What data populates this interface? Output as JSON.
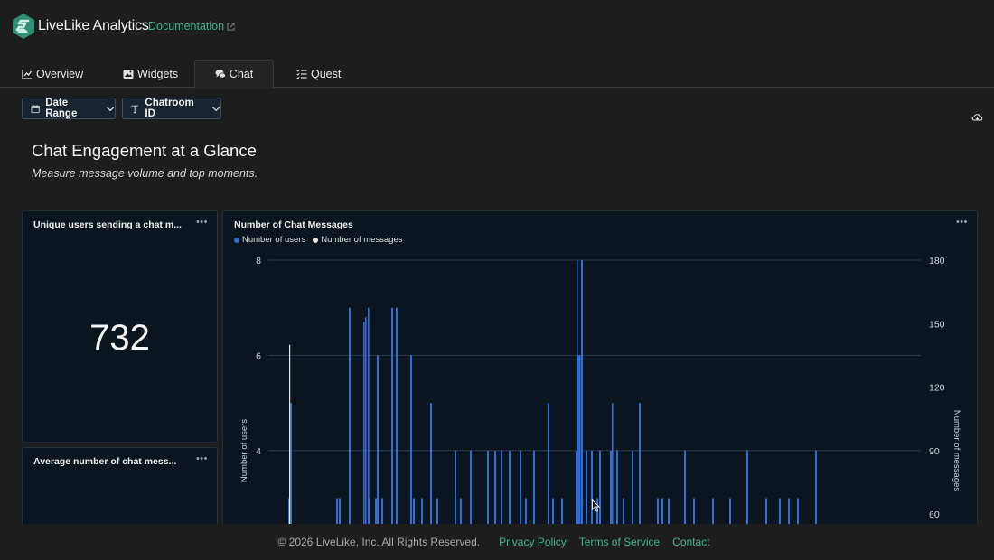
{
  "header": {
    "brand": "LiveLike Analytics",
    "doc_link": "Documentation",
    "brand_color": "#3fb58e"
  },
  "tabs": [
    {
      "label": "Overview",
      "icon": "line-chart-icon"
    },
    {
      "label": "Widgets",
      "icon": "image-icon"
    },
    {
      "label": "Chat",
      "icon": "chat-bubbles-icon",
      "active": true
    },
    {
      "label": "Quest",
      "icon": "checklist-icon"
    }
  ],
  "filters": {
    "date_range": "Date Range",
    "chatroom_id": "Chatroom ID"
  },
  "page": {
    "title": "Chat Engagement at a Glance",
    "subtitle": "Measure message volume and top moments."
  },
  "cards": {
    "unique_users": {
      "title": "Unique users sending a chat m...",
      "value": "732"
    },
    "avg_messages": {
      "title": "Average number of chat mess..."
    }
  },
  "chart_data": {
    "type": "bar",
    "title": "Number of Chat Messages",
    "legend": [
      {
        "name": "Number of users",
        "color": "#2f6fd6"
      },
      {
        "name": "Number of messages",
        "color": "#e8e8e8"
      }
    ],
    "ylabel": "Number of users",
    "y2label": "Number of messages",
    "yticks": [
      "8",
      "6",
      "4"
    ],
    "y2ticks": [
      "180",
      "150",
      "120",
      "90",
      "60"
    ],
    "yrange": [
      2.35,
      8
    ],
    "y2range": [
      60,
      180
    ],
    "legend_placement": "top-left",
    "grid": true,
    "series": [
      {
        "name": "Number of users",
        "values": [
          3,
          5,
          3,
          3,
          7,
          3,
          3,
          6,
          3,
          7,
          7,
          6,
          3,
          3,
          5,
          3,
          4,
          3,
          4,
          4,
          4,
          4,
          4,
          4,
          3,
          4,
          5,
          3,
          3,
          4,
          3,
          4,
          4,
          3,
          4,
          6,
          8,
          4,
          4,
          3,
          4,
          5,
          3,
          3,
          3,
          4,
          3,
          3,
          3,
          4,
          3,
          3,
          3,
          3,
          4
        ]
      },
      {
        "name": "Number of messages",
        "values": [
          140
        ]
      }
    ]
  },
  "footer": {
    "copyright": "© 2026 LiveLike, Inc. All Rights Reserved.",
    "privacy": "Privacy Policy",
    "terms": "Terms of Service",
    "contact": "Contact"
  }
}
